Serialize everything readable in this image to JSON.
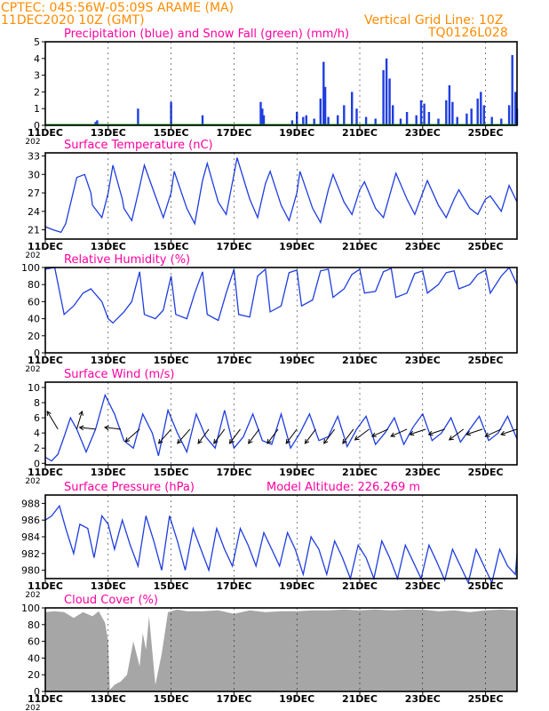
{
  "header": {
    "line1_left": "CPTEC:  045:56W-05:09S  ARAME (MA)",
    "line2_left": "11DEC2020 10Z (GMT)",
    "line1_right": "Vertical Grid Line: 10Z",
    "line2_right": "TQ0126L028"
  },
  "colors": {
    "frame": "#000000",
    "title": "#ff00a0",
    "header": "#ff8c00",
    "series": "#1f3de0",
    "snow": "#00a000",
    "cloud": "#a6a6a6"
  },
  "x_ticks": [
    "11DEC",
    "13DEC",
    "15DEC",
    "17DEC",
    "19DEC",
    "21DEC",
    "23DEC",
    "25DEC"
  ],
  "x_range_days": [
    0,
    15
  ],
  "year_stub": "202",
  "chart_data": [
    {
      "id": "precip",
      "type": "bar",
      "title": "Precipitation (blue) and Snow Fall (green) (mm/h)",
      "ylim": [
        0,
        5
      ],
      "yticks": [
        0,
        1,
        2,
        3,
        4,
        5
      ],
      "series": [
        {
          "name": "Precipitation",
          "values": [
            [
              1.6,
              0.2
            ],
            [
              1.65,
              0.3
            ],
            [
              2.95,
              1.0
            ],
            [
              4.0,
              1.4
            ],
            [
              5.0,
              0.6
            ],
            [
              6.85,
              1.4
            ],
            [
              6.9,
              1.0
            ],
            [
              6.95,
              0.6
            ],
            [
              7.85,
              0.3
            ],
            [
              8.0,
              0.8
            ],
            [
              8.2,
              0.5
            ],
            [
              8.3,
              0.6
            ],
            [
              8.55,
              0.4
            ],
            [
              8.75,
              1.6
            ],
            [
              8.85,
              3.8
            ],
            [
              8.9,
              2.3
            ],
            [
              9.0,
              0.5
            ],
            [
              9.3,
              0.6
            ],
            [
              9.5,
              1.2
            ],
            [
              9.75,
              2.0
            ],
            [
              9.9,
              1.0
            ],
            [
              10.2,
              0.5
            ],
            [
              10.5,
              0.4
            ],
            [
              10.75,
              3.3
            ],
            [
              10.85,
              4.0
            ],
            [
              10.95,
              2.8
            ],
            [
              11.05,
              1.2
            ],
            [
              11.3,
              0.4
            ],
            [
              11.5,
              0.8
            ],
            [
              11.8,
              0.6
            ],
            [
              11.95,
              1.5
            ],
            [
              12.05,
              1.3
            ],
            [
              12.2,
              0.8
            ],
            [
              12.5,
              0.4
            ],
            [
              12.75,
              1.5
            ],
            [
              12.85,
              2.4
            ],
            [
              12.95,
              1.4
            ],
            [
              13.1,
              0.5
            ],
            [
              13.4,
              0.7
            ],
            [
              13.55,
              1.0
            ],
            [
              13.75,
              1.6
            ],
            [
              13.85,
              2.0
            ],
            [
              13.95,
              1.2
            ],
            [
              14.2,
              0.5
            ],
            [
              14.5,
              0.4
            ],
            [
              14.75,
              1.2
            ],
            [
              14.85,
              4.2
            ],
            [
              14.95,
              2.0
            ],
            [
              15.0,
              1.0
            ]
          ]
        },
        {
          "name": "Snow Fall",
          "values": [
            [
              0,
              0
            ],
            [
              15,
              0
            ]
          ]
        }
      ]
    },
    {
      "id": "temp",
      "type": "line",
      "title": "Surface Temperature (nC)",
      "ylim": [
        19.5,
        33.5
      ],
      "yticks": [
        21,
        24,
        27,
        30,
        33
      ],
      "x": [
        0,
        0.25,
        0.5,
        0.65,
        1.0,
        1.25,
        1.45,
        1.5,
        1.8,
        2.0,
        2.15,
        2.45,
        2.5,
        2.75,
        3.0,
        3.15,
        3.5,
        3.75,
        4.0,
        4.1,
        4.5,
        4.75,
        5.0,
        5.15,
        5.5,
        5.75,
        6.0,
        6.1,
        6.5,
        6.75,
        7.0,
        7.15,
        7.5,
        7.75,
        8.0,
        8.1,
        8.5,
        8.75,
        9.0,
        9.15,
        9.5,
        9.75,
        10.0,
        10.15,
        10.5,
        10.75,
        11.0,
        11.15,
        11.5,
        11.75,
        12.0,
        12.15,
        12.5,
        12.75,
        13.0,
        13.15,
        13.5,
        13.75,
        14.0,
        14.15,
        14.5,
        14.75,
        15.0
      ],
      "y": [
        21.5,
        21,
        20.6,
        22,
        29.5,
        30,
        27,
        25,
        23,
        27,
        31.5,
        26,
        24.5,
        22.5,
        28,
        31.5,
        26.5,
        23,
        27,
        30.5,
        24.5,
        22,
        29,
        31.8,
        25.5,
        23.5,
        30,
        32.7,
        26,
        23,
        28.5,
        30.5,
        25,
        22.5,
        27,
        30.5,
        24.5,
        22.2,
        27.5,
        30,
        25.5,
        23.5,
        27.5,
        28.8,
        24.5,
        23,
        27.5,
        30.2,
        26,
        23.5,
        27,
        29,
        25,
        23,
        26,
        27.5,
        24.5,
        23.5,
        26,
        26.5,
        24,
        28.2,
        25.5
      ]
    },
    {
      "id": "rh",
      "type": "line",
      "title": "Relative Humidity (%)",
      "ylim": [
        0,
        100
      ],
      "yticks": [
        0,
        20,
        40,
        60,
        80,
        100
      ],
      "x": [
        0,
        0.3,
        0.6,
        0.9,
        1.2,
        1.45,
        1.8,
        2.0,
        2.15,
        2.5,
        2.75,
        3.0,
        3.15,
        3.5,
        3.75,
        4.0,
        4.15,
        4.5,
        4.75,
        5.0,
        5.15,
        5.5,
        5.75,
        6.0,
        6.15,
        6.5,
        6.75,
        7.0,
        7.15,
        7.5,
        7.75,
        8.0,
        8.15,
        8.5,
        8.75,
        9.0,
        9.15,
        9.5,
        9.75,
        10.0,
        10.15,
        10.5,
        10.75,
        11.0,
        11.15,
        11.5,
        11.75,
        12.0,
        12.15,
        12.5,
        12.75,
        13.0,
        13.15,
        13.5,
        13.75,
        14.0,
        14.15,
        14.5,
        14.75,
        15.0
      ],
      "y": [
        98,
        100,
        45,
        55,
        70,
        75,
        60,
        40,
        35,
        48,
        60,
        95,
        45,
        40,
        50,
        90,
        45,
        40,
        70,
        95,
        45,
        38,
        70,
        98,
        45,
        42,
        90,
        98,
        48,
        55,
        94,
        97,
        55,
        62,
        96,
        98,
        65,
        75,
        92,
        98,
        70,
        72,
        95,
        99,
        65,
        70,
        93,
        96,
        70,
        80,
        94,
        96,
        75,
        80,
        92,
        97,
        70,
        90,
        100,
        80
      ]
    },
    {
      "id": "wind",
      "type": "line",
      "title": "Surface Wind (m/s)",
      "ylim": [
        -0.2,
        10.7
      ],
      "yticks": [
        0,
        2,
        4,
        6,
        8,
        10
      ],
      "x": [
        0,
        0.2,
        0.4,
        0.6,
        0.8,
        1.0,
        1.3,
        1.6,
        1.9,
        2.2,
        2.5,
        2.8,
        3.1,
        3.4,
        3.6,
        3.9,
        4.2,
        4.5,
        4.8,
        5.1,
        5.4,
        5.7,
        6.0,
        6.3,
        6.6,
        6.9,
        7.2,
        7.5,
        7.8,
        8.1,
        8.4,
        8.7,
        9.0,
        9.3,
        9.6,
        9.9,
        10.2,
        10.5,
        10.8,
        11.1,
        11.4,
        11.7,
        12.0,
        12.3,
        12.6,
        12.9,
        13.2,
        13.5,
        13.8,
        14.1,
        14.4,
        14.7,
        15.0
      ],
      "y": [
        0.8,
        0.3,
        1.2,
        3.5,
        6.0,
        4.5,
        1.5,
        4.5,
        9.0,
        6.5,
        3.0,
        2.0,
        6.5,
        4.0,
        1.0,
        7.0,
        4.0,
        1.5,
        6.5,
        3.5,
        2.0,
        7.0,
        2.0,
        3.5,
        6.5,
        3.0,
        2.5,
        6.5,
        2.0,
        4.0,
        6.5,
        3.0,
        3.5,
        6.2,
        2.2,
        4.5,
        6.2,
        2.5,
        4.0,
        6.0,
        2.5,
        4.8,
        6.5,
        3.0,
        4.0,
        6.0,
        2.8,
        4.5,
        6.2,
        3.0,
        4.0,
        6.2,
        3.2
      ],
      "arrows": [
        [
          0.4,
          -0.6,
          1.0
        ],
        [
          1.0,
          0.3,
          1.0
        ],
        [
          1.6,
          -0.9,
          0.1
        ],
        [
          2.4,
          -0.9,
          0.1
        ],
        [
          3.0,
          -0.8,
          -0.7
        ],
        [
          4.0,
          -0.7,
          -0.8
        ],
        [
          4.6,
          -0.7,
          -0.8
        ],
        [
          5.2,
          -0.6,
          -0.8
        ],
        [
          5.7,
          -0.6,
          -0.8
        ],
        [
          6.2,
          -0.6,
          -0.8
        ],
        [
          6.8,
          -0.6,
          -0.8
        ],
        [
          7.4,
          -0.6,
          -0.8
        ],
        [
          8.0,
          -0.6,
          -0.8
        ],
        [
          8.6,
          -0.6,
          -0.8
        ],
        [
          9.2,
          -0.6,
          -0.8
        ],
        [
          9.8,
          -0.6,
          -0.8
        ],
        [
          10.3,
          -0.8,
          -0.6
        ],
        [
          10.9,
          -0.9,
          -0.4
        ],
        [
          11.5,
          -0.9,
          -0.4
        ],
        [
          12.1,
          -0.9,
          -0.3
        ],
        [
          12.7,
          -0.9,
          -0.3
        ],
        [
          13.3,
          -0.8,
          -0.6
        ],
        [
          13.9,
          -0.9,
          -0.3
        ],
        [
          14.5,
          -0.9,
          -0.4
        ],
        [
          15.0,
          -0.9,
          -0.3
        ]
      ]
    },
    {
      "id": "pres",
      "type": "line",
      "title": "Surface Pressure (hPa)",
      "subtitle": "Model Altitude: 226.269  m",
      "ylim": [
        979,
        989
      ],
      "yticks": [
        980,
        982,
        984,
        986,
        988
      ],
      "x": [
        0,
        0.2,
        0.45,
        0.65,
        0.9,
        1.1,
        1.35,
        1.55,
        1.8,
        2.0,
        2.2,
        2.45,
        2.7,
        2.95,
        3.2,
        3.45,
        3.7,
        3.95,
        4.2,
        4.45,
        4.7,
        4.95,
        5.2,
        5.45,
        5.7,
        5.95,
        6.2,
        6.45,
        6.7,
        6.95,
        7.2,
        7.45,
        7.7,
        7.95,
        8.2,
        8.45,
        8.7,
        8.95,
        9.2,
        9.45,
        9.7,
        9.95,
        10.2,
        10.45,
        10.7,
        10.95,
        11.2,
        11.45,
        11.7,
        11.95,
        12.2,
        12.45,
        12.7,
        12.95,
        13.2,
        13.45,
        13.7,
        13.95,
        14.2,
        14.45,
        14.7,
        14.95,
        15.0
      ],
      "y": [
        986.0,
        986.5,
        987.7,
        985.0,
        982.0,
        985.5,
        985.0,
        981.5,
        986.5,
        985.5,
        982.5,
        986.0,
        983.0,
        980.5,
        986.5,
        983.5,
        980.0,
        986.5,
        983.5,
        980.0,
        985.0,
        982.5,
        980.0,
        985.0,
        982.5,
        980.5,
        985.0,
        983.0,
        980.5,
        984.5,
        982.5,
        980.5,
        984.5,
        982.5,
        979.5,
        984.0,
        982.5,
        979.5,
        983.5,
        981.5,
        979.0,
        983.0,
        981.5,
        979.0,
        983.5,
        981.5,
        979.0,
        983.0,
        981.0,
        979.0,
        983.0,
        981.0,
        978.8,
        982.5,
        980.5,
        978.5,
        982.5,
        980.5,
        978.5,
        982.5,
        980.5,
        979.5,
        982.0
      ]
    },
    {
      "id": "cloud",
      "type": "area",
      "title": "Cloud Cover (%)",
      "ylim": [
        0,
        100
      ],
      "yticks": [
        0,
        20,
        40,
        60,
        80,
        100
      ],
      "x": [
        0,
        0.3,
        0.6,
        0.9,
        1.2,
        1.5,
        1.7,
        1.9,
        2.0,
        2.05,
        2.2,
        2.4,
        2.6,
        2.8,
        3.0,
        3.1,
        3.2,
        3.3,
        3.5,
        3.7,
        3.9,
        4.0,
        4.2,
        4.5,
        5.0,
        5.5,
        6.0,
        6.5,
        7.0,
        7.5,
        8.0,
        8.5,
        9.0,
        9.5,
        10.0,
        10.5,
        11.0,
        11.5,
        12.0,
        12.5,
        13.0,
        13.5,
        14.0,
        14.5,
        15.0
      ],
      "y": [
        95,
        96,
        95,
        88,
        95,
        90,
        96,
        82,
        60,
        2,
        8,
        12,
        20,
        60,
        30,
        70,
        50,
        90,
        8,
        45,
        95,
        96,
        98,
        96,
        96,
        97,
        93,
        97,
        95,
        96,
        96,
        97,
        97,
        98,
        97,
        98,
        97,
        98,
        98,
        96,
        97,
        95,
        97,
        98,
        97
      ]
    }
  ]
}
